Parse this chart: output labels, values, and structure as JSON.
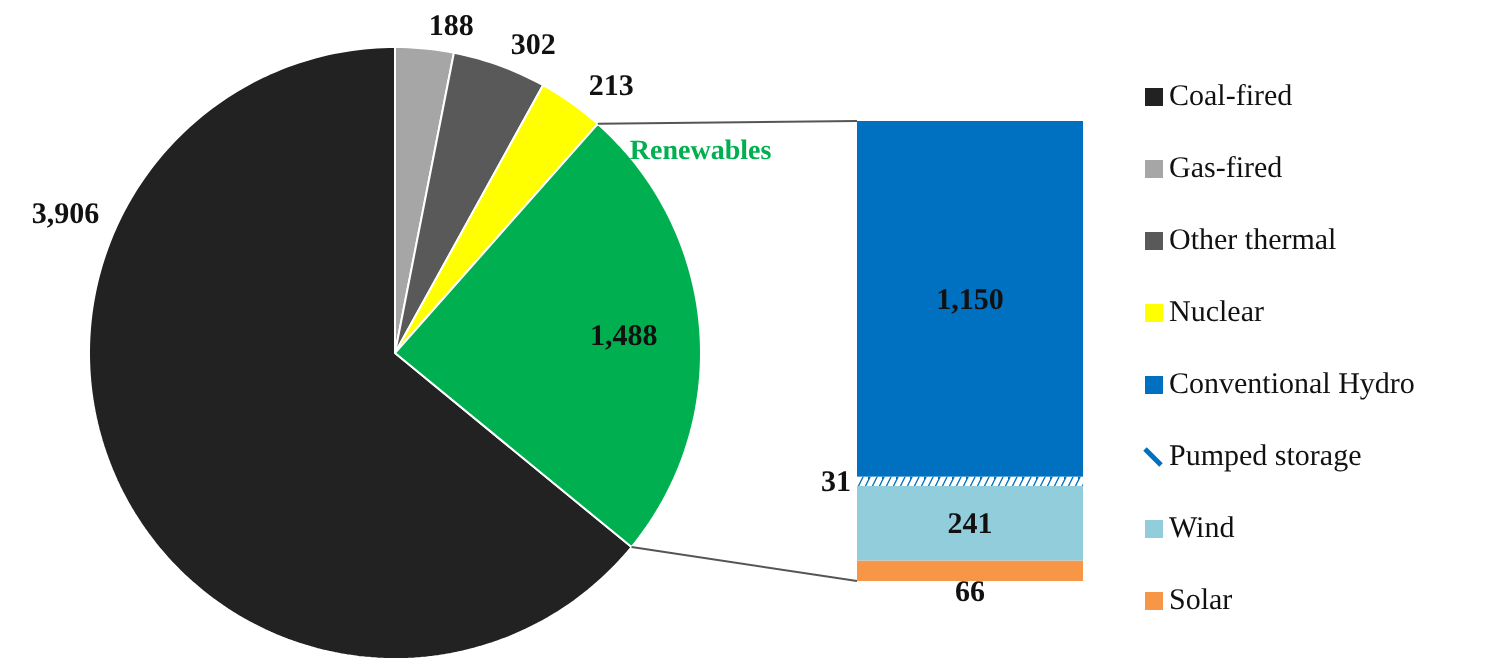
{
  "chart_data": [
    {
      "type": "pie",
      "categories": [
        "Coal-fired",
        "Gas-fired",
        "Other thermal",
        "Nuclear",
        null
      ],
      "values": [
        3906,
        188,
        302,
        213,
        1488
      ],
      "colors": [
        "#222222",
        "#a6a6a6",
        "#595959",
        "#ffff00",
        "#00b050"
      ],
      "value_labels": [
        "3,906",
        "188",
        "302",
        "213",
        "1,488"
      ],
      "annotations": [
        "Renewables"
      ],
      "legend": "right"
    },
    {
      "type": "bar",
      "stacked": true,
      "categories": [
        null
      ],
      "series": [
        {
          "name": "Solar",
          "color": "#f79646",
          "values": [
            66
          ],
          "value_labels": [
            "66"
          ]
        },
        {
          "name": "Wind",
          "color": "#92cddc",
          "values": [
            241
          ],
          "value_labels": [
            "241"
          ]
        },
        {
          "name": "Pumped storage",
          "color": "#0070c0",
          "values": [
            31
          ],
          "value_labels": [
            "31"
          ]
        },
        {
          "name": "Conventional Hydro",
          "color": "#0070c0",
          "values": [
            1150
          ],
          "value_labels": [
            "1,150"
          ]
        }
      ],
      "legend": "right"
    }
  ]
}
